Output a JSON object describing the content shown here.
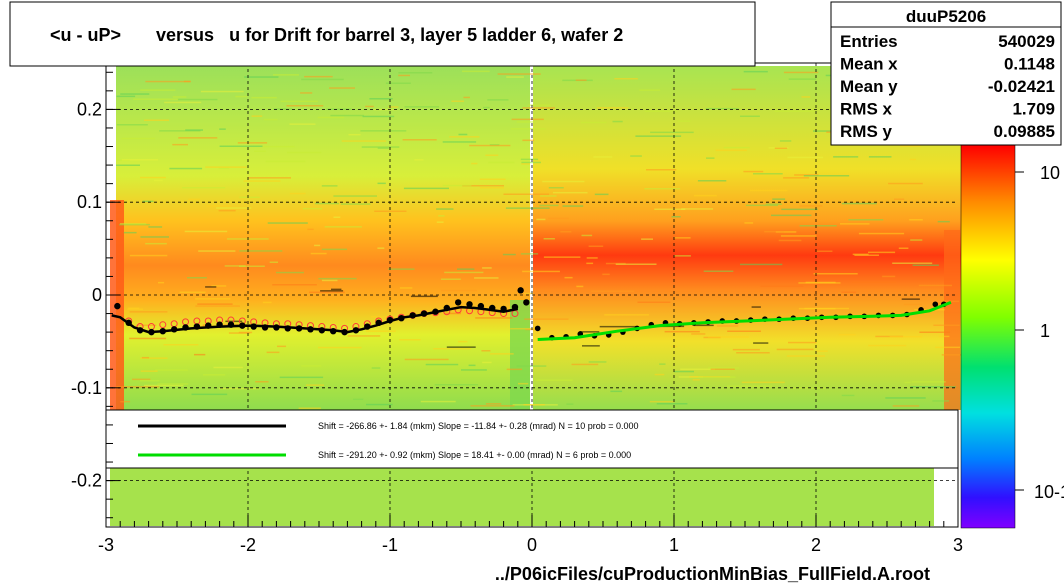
{
  "title": "<u - uP>       versus   u for Drift for barrel 3, layer 5 ladder 6, wafer 2",
  "footer": "../P06icFiles/cuProductionMinBias_FullField.A.root",
  "stats": {
    "name": "duuP5206",
    "rows": [
      {
        "label": "Entries",
        "value": "540029"
      },
      {
        "label": "Mean x",
        "value": "0.1148"
      },
      {
        "label": "Mean y",
        "value": "-0.02421"
      },
      {
        "label": "RMS x",
        "value": "1.709"
      },
      {
        "label": "RMS y",
        "value": "0.09885"
      }
    ]
  },
  "legend": [
    {
      "color": "#000000",
      "text": "Shift =  -266.86 +- 1.84 (mkm) Slope =   -11.84 +- 0.28 (mrad)  N = 10 prob = 0.000"
    },
    {
      "color": "#00dd00",
      "text": "Shift =  -291.20 +- 0.92 (mkm) Slope =    18.41 +- 0.00 (mrad)  N = 6 prob = 0.000"
    }
  ],
  "colors": {
    "black_fit": "#000000",
    "green_fit": "#00dd00",
    "profile_red": "#ff3a3a"
  },
  "chart_data": {
    "type": "heatmap",
    "xlim": [
      -3,
      3
    ],
    "ylim": [
      -0.25,
      0.25
    ],
    "x_ticks": [
      "-3",
      "-2",
      "-1",
      "0",
      "1",
      "2",
      "3"
    ],
    "y_ticks": [
      "0.2",
      "0.1",
      "0",
      "-0.1",
      "-0.2"
    ],
    "y_tick_values": [
      0.2,
      0.1,
      0,
      -0.1,
      -0.2
    ],
    "grid": true,
    "colorbar": {
      "scale": "log",
      "labels": [
        "10",
        "1",
        "10-1"
      ]
    },
    "black_points": {
      "x": [
        -2.92,
        -2.84,
        -2.76,
        -2.68,
        -2.6,
        -2.52,
        -2.44,
        -2.36,
        -2.28,
        -2.2,
        -2.12,
        -2.04,
        -1.96,
        -1.88,
        -1.8,
        -1.72,
        -1.64,
        -1.56,
        -1.48,
        -1.4,
        -1.32,
        -1.24,
        -1.16,
        -1.08,
        -1.0,
        -0.92,
        -0.84,
        -0.76,
        -0.68,
        -0.6,
        -0.52,
        -0.44,
        -0.36,
        -0.28,
        -0.2,
        -0.12,
        -0.08,
        -0.04
      ],
      "y": [
        -0.012,
        -0.03,
        -0.038,
        -0.04,
        -0.039,
        -0.037,
        -0.035,
        -0.034,
        -0.033,
        -0.032,
        -0.032,
        -0.033,
        -0.034,
        -0.035,
        -0.035,
        -0.036,
        -0.036,
        -0.037,
        -0.038,
        -0.039,
        -0.04,
        -0.038,
        -0.034,
        -0.03,
        -0.027,
        -0.025,
        -0.022,
        -0.02,
        -0.018,
        -0.014,
        -0.008,
        -0.01,
        -0.012,
        -0.014,
        -0.015,
        -0.013,
        0.005,
        -0.008
      ]
    },
    "black_fit": {
      "x": [
        -2.96,
        -2.9,
        -2.8,
        -2.7,
        -2.6,
        -2.4,
        -2.2,
        -2.0,
        -1.8,
        -1.6,
        -1.4,
        -1.3,
        -1.2,
        -1.1,
        -1.0,
        -0.9,
        -0.8,
        -0.7,
        -0.6,
        -0.5,
        -0.4,
        -0.3,
        -0.2,
        -0.1
      ],
      "y": [
        -0.022,
        -0.024,
        -0.035,
        -0.04,
        -0.039,
        -0.036,
        -0.034,
        -0.033,
        -0.034,
        -0.036,
        -0.038,
        -0.04,
        -0.037,
        -0.033,
        -0.028,
        -0.024,
        -0.022,
        -0.019,
        -0.016,
        -0.013,
        -0.014,
        -0.016,
        -0.018,
        -0.015
      ]
    },
    "red_points": {
      "x": [
        -2.84,
        -2.76,
        -2.68,
        -2.6,
        -2.52,
        -2.44,
        -2.36,
        -2.28,
        -2.2,
        -2.12,
        -2.04,
        -1.96,
        -1.88,
        -1.8,
        -1.72,
        -1.64,
        -1.56,
        -1.48,
        -1.4,
        -1.32,
        -1.24,
        -1.16,
        -1.08,
        -1.0,
        -0.92,
        -0.84,
        -0.76,
        -0.68,
        -0.6,
        -0.52,
        -0.44,
        -0.36,
        -0.28,
        -0.2,
        -0.12
      ],
      "y": [
        -0.028,
        -0.034,
        -0.034,
        -0.032,
        -0.031,
        -0.029,
        -0.028,
        -0.028,
        -0.027,
        -0.027,
        -0.028,
        -0.029,
        -0.03,
        -0.031,
        -0.031,
        -0.032,
        -0.033,
        -0.034,
        -0.035,
        -0.036,
        -0.034,
        -0.031,
        -0.028,
        -0.026,
        -0.024,
        -0.022,
        -0.02,
        -0.019,
        -0.018,
        -0.016,
        -0.017,
        -0.018,
        -0.019,
        -0.02,
        -0.02
      ]
    },
    "green_points": {
      "x": [
        0.04,
        0.14,
        0.24,
        0.34,
        0.44,
        0.54,
        0.64,
        0.74,
        0.84,
        0.94,
        1.04,
        1.14,
        1.24,
        1.34,
        1.44,
        1.54,
        1.64,
        1.74,
        1.84,
        1.94,
        2.04,
        2.14,
        2.24,
        2.34,
        2.44,
        2.54,
        2.64,
        2.74,
        2.84,
        2.9
      ],
      "y": [
        -0.036,
        -0.046,
        -0.045,
        -0.042,
        -0.044,
        -0.043,
        -0.04,
        -0.036,
        -0.032,
        -0.03,
        -0.031,
        -0.03,
        -0.029,
        -0.028,
        -0.028,
        -0.027,
        -0.026,
        -0.026,
        -0.025,
        -0.025,
        -0.024,
        -0.024,
        -0.023,
        -0.023,
        -0.022,
        -0.022,
        -0.021,
        -0.016,
        -0.01,
        -0.01
      ]
    },
    "green_fit": {
      "x": [
        0.04,
        0.3,
        0.6,
        0.9,
        1.2,
        1.5,
        1.8,
        2.1,
        2.4,
        2.6,
        2.8,
        2.95
      ],
      "y": [
        -0.048,
        -0.046,
        -0.039,
        -0.033,
        -0.03,
        -0.028,
        -0.026,
        -0.024,
        -0.023,
        -0.022,
        -0.017,
        -0.008
      ]
    }
  }
}
